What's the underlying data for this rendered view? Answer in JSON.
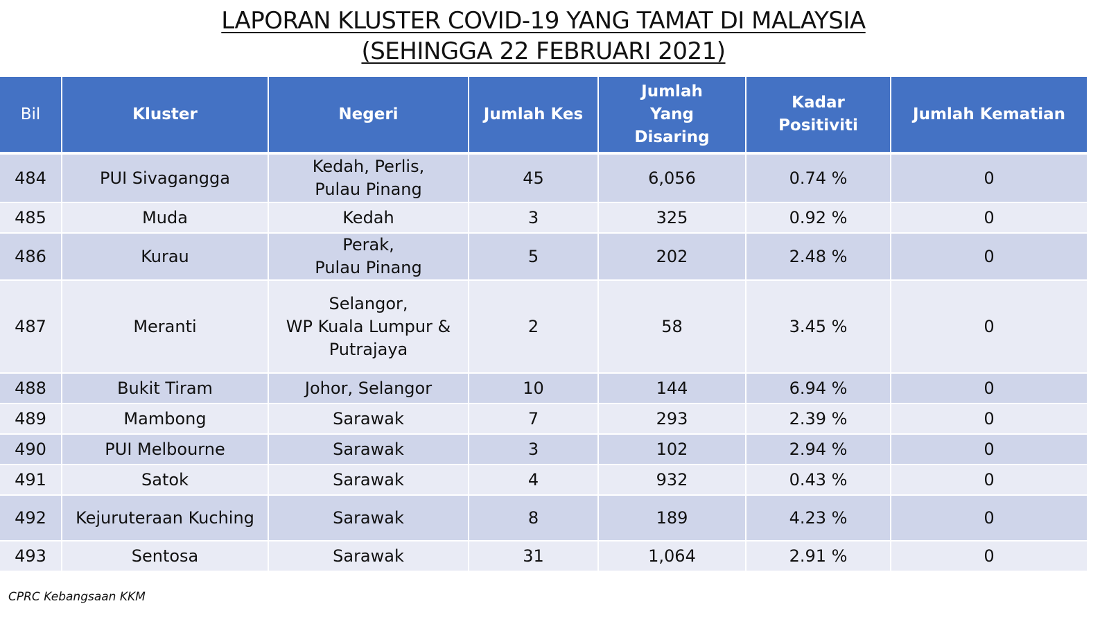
{
  "title": {
    "line1": "LAPORAN KLUSTER COVID-19 YANG TAMAT DI MALAYSIA",
    "line2": "(SEHINGGA 22 FEBRUARI 2021)"
  },
  "table": {
    "headers": [
      "Bil",
      "Kluster",
      "Negeri",
      "Jumlah Kes",
      "Jumlah Yang Disaring",
      "Kadar Positiviti",
      "Jumlah Kematian"
    ],
    "rows": [
      {
        "bil": "484",
        "kluster": "PUI Sivagangga",
        "negeri": [
          "Kedah, Perlis,",
          "Pulau Pinang"
        ],
        "kes": "45",
        "disaring": "6,056",
        "positiviti": "0.74 %",
        "kematian": "0"
      },
      {
        "bil": "485",
        "kluster": "Muda",
        "negeri": [
          "Kedah"
        ],
        "kes": "3",
        "disaring": "325",
        "positiviti": "0.92 %",
        "kematian": "0"
      },
      {
        "bil": "486",
        "kluster": "Kurau",
        "negeri": [
          "Perak,",
          "Pulau Pinang"
        ],
        "kes": "5",
        "disaring": "202",
        "positiviti": "2.48 %",
        "kematian": "0"
      },
      {
        "bil": "487",
        "kluster": "Meranti",
        "negeri": [
          "Selangor,",
          "WP Kuala Lumpur &",
          "Putrajaya"
        ],
        "kes": "2",
        "disaring": "58",
        "positiviti": "3.45 %",
        "kematian": "0"
      },
      {
        "bil": "488",
        "kluster": "Bukit Tiram",
        "negeri": [
          "Johor, Selangor"
        ],
        "kes": "10",
        "disaring": "144",
        "positiviti": "6.94 %",
        "kematian": "0"
      },
      {
        "bil": "489",
        "kluster": "Mambong",
        "negeri": [
          "Sarawak"
        ],
        "kes": "7",
        "disaring": "293",
        "positiviti": "2.39 %",
        "kematian": "0"
      },
      {
        "bil": "490",
        "kluster": "PUI Melbourne",
        "negeri": [
          "Sarawak"
        ],
        "kes": "3",
        "disaring": "102",
        "positiviti": "2.94 %",
        "kematian": "0"
      },
      {
        "bil": "491",
        "kluster": "Satok",
        "negeri": [
          "Sarawak"
        ],
        "kes": "4",
        "disaring": "932",
        "positiviti": "0.43 %",
        "kematian": "0"
      },
      {
        "bil": "492",
        "kluster": "Kejuruteraan Kuching",
        "negeri": [
          "Sarawak"
        ],
        "kes": "8",
        "disaring": "189",
        "positiviti": "4.23 %",
        "kematian": "0"
      },
      {
        "bil": "493",
        "kluster": "Sentosa",
        "negeri": [
          "Sarawak"
        ],
        "kes": "31",
        "disaring": "1,064",
        "positiviti": "2.91 %",
        "kematian": "0"
      }
    ]
  },
  "footer": "CPRC Kebangsaan KKM",
  "colors": {
    "header_bg": "#4472c4",
    "row_odd": "#cfd5ea",
    "row_even": "#e9ebf5"
  }
}
